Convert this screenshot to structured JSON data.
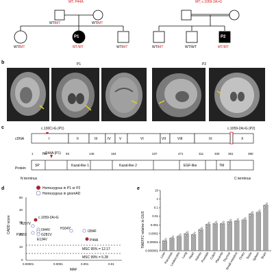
{
  "panel_a": {
    "left_header": "MT; P44A",
    "right_header": "MT; c.1059-2A>G",
    "genotypes": {
      "p1_father": {
        "wt": "WT",
        "mt": "MT"
      },
      "p1_mother": {
        "wt": "WT",
        "mt": "MT"
      },
      "p1_sib1": {
        "wt": "WT",
        "mt": "MT"
      },
      "p1_proband": {
        "wt": "MT",
        "mt": "MT"
      },
      "p1_sib2": {
        "wt": "WT",
        "mt": "MT"
      },
      "p2_sib1": {
        "wt": "WT",
        "mt": "MT"
      },
      "p2_sib2": {
        "wt": "WT",
        "mt": "WT"
      },
      "p2_proband": {
        "wt": "MT",
        "mt": "MT"
      }
    },
    "proband1": "P1",
    "proband2": "P2"
  },
  "panel_b": {
    "label": "b",
    "p1": "P1",
    "p2": "P2"
  },
  "panel_c": {
    "label": "c",
    "cdna_label": "cDNA",
    "protein_label": "Protein",
    "mut1": "c.130C>G (P1)",
    "mut2": "c.1059-2A>G (P2)",
    "pmut": "p.P44A (P1)",
    "exons": [
      "I",
      "II",
      "III",
      "IV",
      "V",
      "VI",
      "VII",
      "VIII",
      "IX",
      "X"
    ],
    "positions": [
      "1",
      "39",
      "93",
      "145",
      "184",
      "237",
      "271",
      "311",
      "330",
      "351",
      "380"
    ],
    "domains": [
      "SP",
      "Kazal-like 1",
      "Kazal-like 2",
      "EGF-like",
      "TM"
    ],
    "nterm": "N terminus",
    "cterm": "C terminus"
  },
  "panel_d": {
    "label": "d",
    "legend": [
      "Homozygous in P1 or P2",
      "Homozygous in gnomAD"
    ],
    "ylabel": "CADD score",
    "xlabel": "MAF",
    "msc95": "MSC 95% = 12.17",
    "msc99": "MSC 99% = 5.28",
    "yticks": [
      "50",
      "40",
      "30",
      "20",
      "10",
      "0"
    ],
    "xticks": [
      "0.00001",
      "0.0001",
      "0.001",
      "0.01"
    ],
    "points": [
      "A297V",
      "I344V",
      "G281V",
      "P255S",
      "E134V",
      "H104Y",
      "I284F",
      "P44A",
      "c.1059-2A>G"
    ]
  },
  "panel_e": {
    "label": "e",
    "ylabel": "TMEFF1 relative to GUS",
    "yticks": [
      "10",
      "1",
      "0.1",
      "0.01",
      "0.001",
      "0.0001",
      "0.00001",
      "0.000001"
    ],
    "tissues": [
      "Liver",
      "Pancreas",
      "Leukocytes",
      "Lung",
      "Heart",
      "Kidney",
      "Prostate",
      "Colon",
      "Placenta",
      "Thymus",
      "Small intestine",
      "Ovary",
      "Testis",
      "Spleen",
      "Brain"
    ]
  },
  "chart_data": [
    {
      "type": "scatter",
      "xlabel": "MAF",
      "ylabel": "CADD score",
      "ylim": [
        0,
        50
      ],
      "xscale": "log",
      "points": [
        {
          "label": "c.1059-2A>G",
          "maf": 2.8e-06,
          "cadd": 33,
          "group": "Homozygous in P1 or P2"
        },
        {
          "label": "P44A",
          "maf": 0.0045,
          "cadd": 17,
          "group": "Homozygous in P1 or P2"
        },
        {
          "label": "A297V",
          "maf": 2.5e-06,
          "cadd": 28,
          "group": "Homozygous in gnomAD"
        },
        {
          "label": "I344V",
          "maf": 5.5e-06,
          "cadd": 25,
          "group": "Homozygous in gnomAD"
        },
        {
          "label": "G281V",
          "maf": 5.5e-06,
          "cadd": 23.5,
          "group": "Homozygous in gnomAD"
        },
        {
          "label": "P255S",
          "maf": 2.5e-06,
          "cadd": 22,
          "group": "Homozygous in gnomAD"
        },
        {
          "label": "E134V",
          "maf": 5.5e-06,
          "cadd": 21,
          "group": "Homozygous in gnomAD"
        },
        {
          "label": "H104Y",
          "maf": 0.0003,
          "cadd": 23.5,
          "group": "Homozygous in gnomAD"
        },
        {
          "label": "I284F",
          "maf": 0.0035,
          "cadd": 23.5,
          "group": "Homozygous in gnomAD"
        }
      ],
      "hlines": [
        12.17,
        5.28
      ]
    },
    {
      "type": "bar",
      "ylabel": "TMEFF1 relative to GUS",
      "yscale": "log",
      "ylim": [
        1e-06,
        10
      ],
      "categories": [
        "Liver",
        "Pancreas",
        "Leukocytes",
        "Lung",
        "Heart",
        "Kidney",
        "Prostate",
        "Colon",
        "Placenta",
        "Thymus",
        "Small intestine",
        "Ovary",
        "Testis",
        "Spleen",
        "Brain"
      ],
      "values": [
        1.5e-05,
        3e-05,
        5e-05,
        0.0001,
        8e-05,
        0.0003,
        0.0012,
        0.0015,
        0.0015,
        0.0025,
        0.003,
        0.004,
        0.02,
        0.03,
        0.2
      ]
    }
  ]
}
